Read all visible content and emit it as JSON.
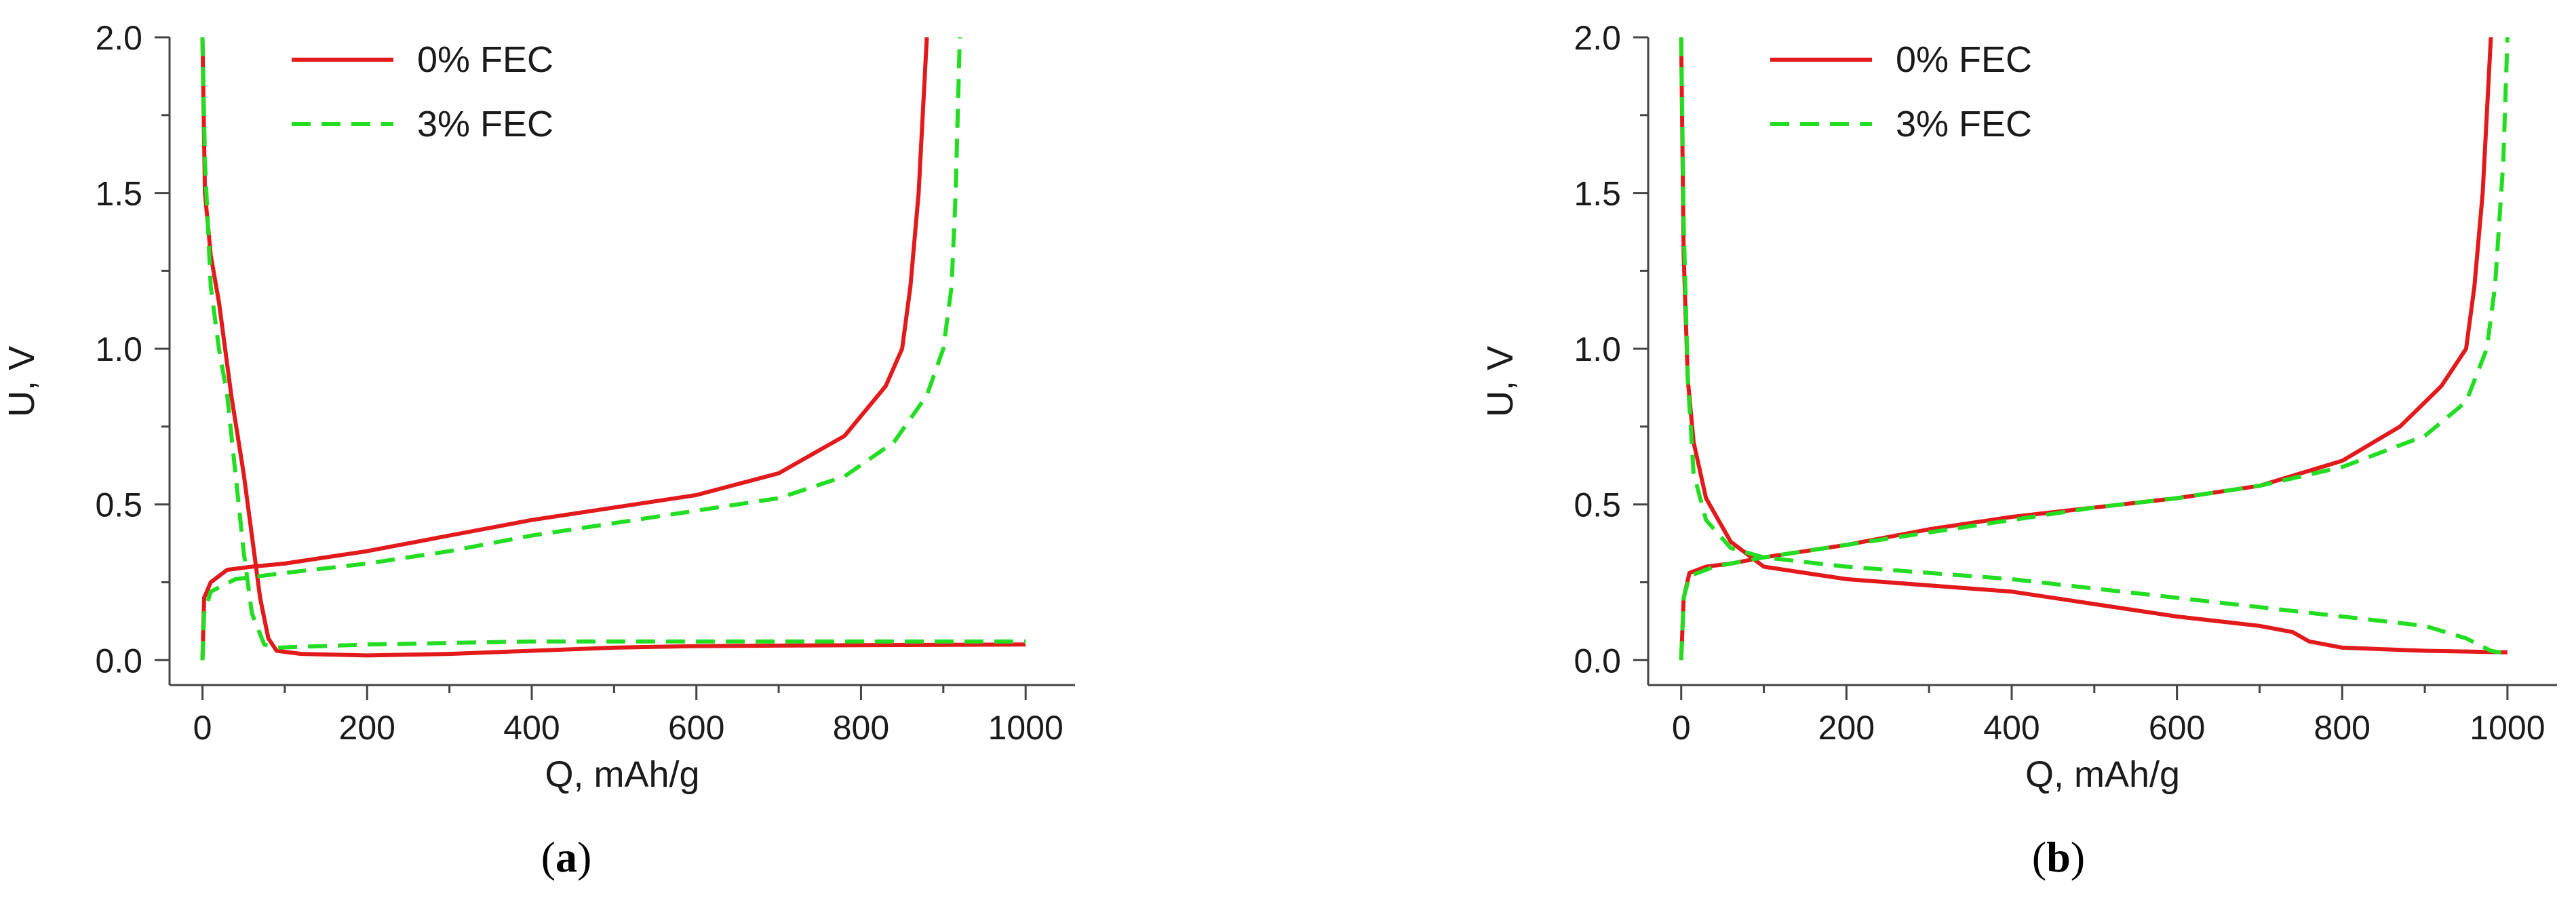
{
  "colors": {
    "series_0": "#e31a1c",
    "series_3": "#22dd22",
    "axis": "#444444"
  },
  "chart_data": [
    {
      "type": "line",
      "panel": "a",
      "caption_open": "(",
      "caption_letter": "a",
      "caption_close": ")",
      "xlabel": "Q, mAh/g",
      "ylabel": "U, V",
      "xlim": [
        -40,
        1060
      ],
      "ylim": [
        -0.08,
        2.0
      ],
      "xticks": [
        0,
        200,
        400,
        600,
        800,
        1000
      ],
      "xtick_labels": [
        "0",
        "200",
        "400",
        "600",
        "800",
        "1000"
      ],
      "yticks": [
        0.0,
        0.5,
        1.0,
        1.5,
        2.0
      ],
      "ytick_labels": [
        "0.0",
        "0.5",
        "1.0",
        "1.5",
        "2.0"
      ],
      "grid": false,
      "legend_position": "top-left",
      "series": [
        {
          "name": "0% FEC",
          "style": "solid",
          "color": "#e31a1c",
          "segments": [
            [
              [
                0,
                2.0
              ],
              [
                3,
                1.5
              ],
              [
                10,
                1.3
              ],
              [
                20,
                1.15
              ],
              [
                35,
                0.85
              ],
              [
                50,
                0.6
              ],
              [
                60,
                0.4
              ],
              [
                70,
                0.2
              ],
              [
                80,
                0.07
              ],
              [
                90,
                0.03
              ],
              [
                120,
                0.02
              ],
              [
                200,
                0.015
              ],
              [
                300,
                0.02
              ],
              [
                400,
                0.03
              ],
              [
                500,
                0.04
              ],
              [
                600,
                0.045
              ],
              [
                800,
                0.048
              ],
              [
                1000,
                0.05
              ]
            ],
            [
              [
                0,
                0.0
              ],
              [
                2,
                0.2
              ],
              [
                10,
                0.25
              ],
              [
                30,
                0.29
              ],
              [
                60,
                0.3
              ],
              [
                100,
                0.31
              ],
              [
                200,
                0.35
              ],
              [
                300,
                0.4
              ],
              [
                400,
                0.45
              ],
              [
                500,
                0.49
              ],
              [
                600,
                0.53
              ],
              [
                700,
                0.6
              ],
              [
                780,
                0.72
              ],
              [
                830,
                0.88
              ],
              [
                850,
                1.0
              ],
              [
                860,
                1.2
              ],
              [
                870,
                1.5
              ],
              [
                880,
                2.0
              ]
            ]
          ]
        },
        {
          "name": "3% FEC",
          "style": "dashed",
          "color": "#22dd22",
          "segments": [
            [
              [
                0,
                2.0
              ],
              [
                3,
                1.6
              ],
              [
                10,
                1.2
              ],
              [
                20,
                1.0
              ],
              [
                30,
                0.85
              ],
              [
                40,
                0.6
              ],
              [
                50,
                0.35
              ],
              [
                60,
                0.15
              ],
              [
                75,
                0.05
              ],
              [
                90,
                0.04
              ],
              [
                200,
                0.05
              ],
              [
                400,
                0.06
              ],
              [
                600,
                0.06
              ],
              [
                800,
                0.06
              ],
              [
                1000,
                0.06
              ]
            ],
            [
              [
                0,
                0.0
              ],
              [
                2,
                0.15
              ],
              [
                10,
                0.22
              ],
              [
                40,
                0.26
              ],
              [
                100,
                0.28
              ],
              [
                200,
                0.31
              ],
              [
                300,
                0.35
              ],
              [
                400,
                0.4
              ],
              [
                500,
                0.44
              ],
              [
                600,
                0.48
              ],
              [
                700,
                0.52
              ],
              [
                780,
                0.59
              ],
              [
                840,
                0.7
              ],
              [
                880,
                0.85
              ],
              [
                900,
                1.0
              ],
              [
                910,
                1.2
              ],
              [
                915,
                1.5
              ],
              [
                920,
                2.0
              ]
            ]
          ]
        }
      ]
    },
    {
      "type": "line",
      "panel": "b",
      "caption_open": "(",
      "caption_letter": "b",
      "caption_close": ")",
      "xlabel": "Q, mAh/g",
      "ylabel": "U, V",
      "xlim": [
        -40,
        1060
      ],
      "ylim": [
        -0.08,
        2.0
      ],
      "xticks": [
        0,
        200,
        400,
        600,
        800,
        1000
      ],
      "xtick_labels": [
        "0",
        "200",
        "400",
        "600",
        "800",
        "1000"
      ],
      "yticks": [
        0.0,
        0.5,
        1.0,
        1.5,
        2.0
      ],
      "ytick_labels": [
        "0.0",
        "0.5",
        "1.0",
        "1.5",
        "2.0"
      ],
      "grid": false,
      "legend_position": "top-left",
      "series": [
        {
          "name": "0% FEC",
          "style": "solid",
          "color": "#e31a1c",
          "segments": [
            [
              [
                0,
                2.0
              ],
              [
                3,
                1.3
              ],
              [
                8,
                0.9
              ],
              [
                15,
                0.7
              ],
              [
                30,
                0.52
              ],
              [
                60,
                0.38
              ],
              [
                100,
                0.3
              ],
              [
                200,
                0.26
              ],
              [
                300,
                0.24
              ],
              [
                400,
                0.22
              ],
              [
                500,
                0.18
              ],
              [
                600,
                0.14
              ],
              [
                700,
                0.11
              ],
              [
                740,
                0.09
              ],
              [
                760,
                0.06
              ],
              [
                800,
                0.04
              ],
              [
                900,
                0.03
              ],
              [
                1000,
                0.025
              ]
            ],
            [
              [
                0,
                0.0
              ],
              [
                3,
                0.2
              ],
              [
                10,
                0.28
              ],
              [
                30,
                0.3
              ],
              [
                60,
                0.31
              ],
              [
                100,
                0.33
              ],
              [
                200,
                0.37
              ],
              [
                300,
                0.42
              ],
              [
                400,
                0.46
              ],
              [
                500,
                0.49
              ],
              [
                600,
                0.52
              ],
              [
                700,
                0.56
              ],
              [
                800,
                0.64
              ],
              [
                870,
                0.75
              ],
              [
                920,
                0.88
              ],
              [
                950,
                1.0
              ],
              [
                960,
                1.2
              ],
              [
                970,
                1.5
              ],
              [
                980,
                2.0
              ]
            ]
          ]
        },
        {
          "name": "3% FEC",
          "style": "dashed",
          "color": "#22dd22",
          "segments": [
            [
              [
                0,
                2.0
              ],
              [
                3,
                1.4
              ],
              [
                8,
                0.9
              ],
              [
                15,
                0.6
              ],
              [
                30,
                0.45
              ],
              [
                60,
                0.36
              ],
              [
                100,
                0.33
              ],
              [
                200,
                0.3
              ],
              [
                300,
                0.28
              ],
              [
                400,
                0.26
              ],
              [
                500,
                0.23
              ],
              [
                600,
                0.2
              ],
              [
                700,
                0.17
              ],
              [
                800,
                0.14
              ],
              [
                900,
                0.11
              ],
              [
                950,
                0.07
              ],
              [
                980,
                0.03
              ],
              [
                1000,
                0.02
              ]
            ],
            [
              [
                0,
                0.0
              ],
              [
                3,
                0.2
              ],
              [
                10,
                0.27
              ],
              [
                40,
                0.3
              ],
              [
                100,
                0.33
              ],
              [
                200,
                0.37
              ],
              [
                300,
                0.41
              ],
              [
                400,
                0.45
              ],
              [
                500,
                0.49
              ],
              [
                600,
                0.52
              ],
              [
                700,
                0.56
              ],
              [
                800,
                0.62
              ],
              [
                900,
                0.72
              ],
              [
                950,
                0.83
              ],
              [
                975,
                1.0
              ],
              [
                985,
                1.2
              ],
              [
                995,
                1.6
              ],
              [
                1000,
                2.0
              ]
            ]
          ]
        }
      ]
    }
  ]
}
